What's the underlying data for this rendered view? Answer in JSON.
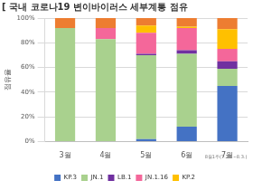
{
  "chart_data": {
    "type": "bar",
    "stacked": true,
    "title": "[ 국내 코로나19 변이바이러스 세부계통 점유",
    "y_label": "점유율",
    "annotation": "8월1주(7.28.~8.3.)",
    "categories": [
      "3월",
      "4월",
      "5월",
      "6월",
      "7월"
    ],
    "series": [
      {
        "name": "KP.3",
        "color": "#4472c4",
        "values": [
          0,
          0,
          2,
          12,
          45
        ]
      },
      {
        "name": "JN.1",
        "color": "#a9d18e",
        "values": [
          92,
          83,
          68,
          59,
          14
        ]
      },
      {
        "name": "LB.1",
        "color": "#7030a0",
        "values": [
          0,
          0,
          1,
          3,
          6
        ]
      },
      {
        "name": "JN.1.16",
        "color": "#f4679a",
        "values": [
          0,
          9,
          17,
          18,
          10
        ]
      },
      {
        "name": "KP.2",
        "color": "#ffc000",
        "values": [
          0,
          0,
          6,
          1,
          16
        ]
      },
      {
        "name": null,
        "color": "#ed7d31",
        "values": [
          8,
          8,
          6,
          7,
          9
        ]
      }
    ],
    "ylim": [
      0,
      100
    ],
    "yticks": [
      {
        "value": 0,
        "label": "0%"
      },
      {
        "value": 20,
        "label": "20%"
      },
      {
        "value": 40,
        "label": "40%"
      },
      {
        "value": 60,
        "label": "60%"
      },
      {
        "value": 80,
        "label": "80%"
      },
      {
        "value": 100,
        "label": "100%"
      }
    ],
    "grid": true,
    "legend": "bottom"
  }
}
